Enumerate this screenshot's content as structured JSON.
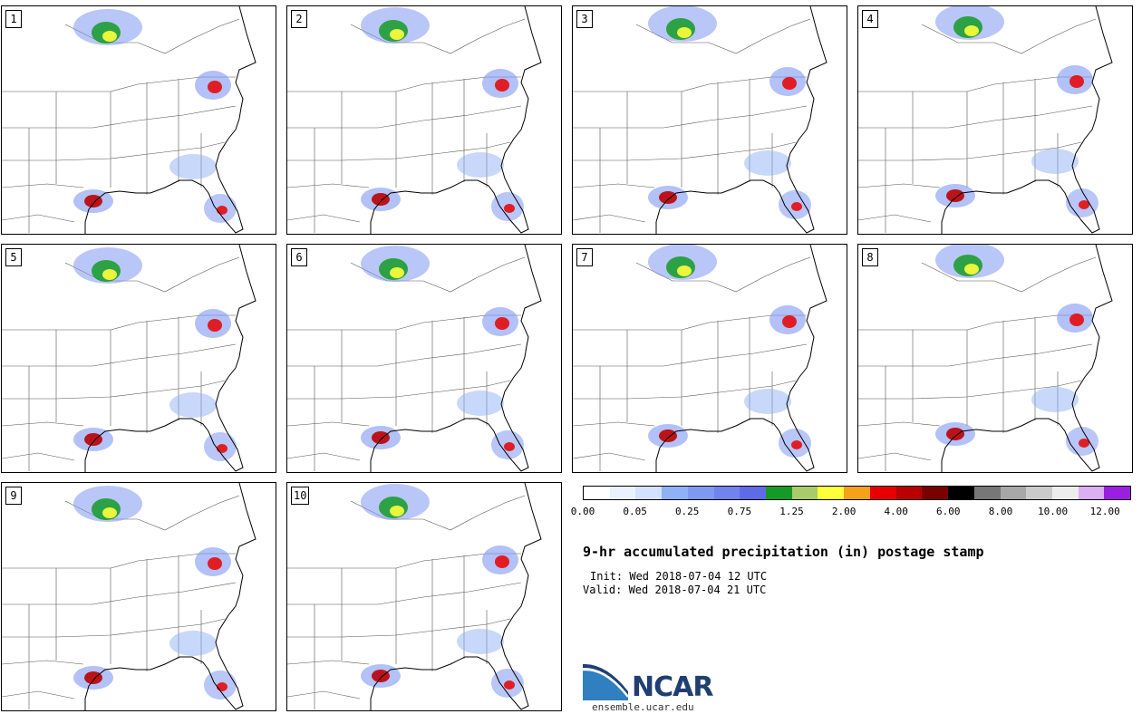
{
  "members": [
    "1",
    "2",
    "3",
    "4",
    "5",
    "6",
    "7",
    "8",
    "9",
    "10"
  ],
  "colorbar": {
    "colors": [
      "#ffffff",
      "#eaf2ff",
      "#d4e2ff",
      "#8fb1f5",
      "#7f98f2",
      "#7183ee",
      "#5f6be6",
      "#149a26",
      "#a8cc6a",
      "#ffff3a",
      "#f4a21a",
      "#e80000",
      "#bb0000",
      "#7a0000",
      "#000000",
      "#777777",
      "#a8a8a8",
      "#cbcbcb",
      "#ededed",
      "#dcaef2",
      "#9a1fe0"
    ],
    "tick_labels": [
      "0.00",
      "0.05",
      "0.25",
      "0.75",
      "1.25",
      "2.00",
      "4.00",
      "6.00",
      "8.00",
      "10.00",
      "12.00"
    ]
  },
  "title": "9-hr accumulated precipitation (in) postage stamp",
  "init": "Init: Wed 2018-07-04 12 UTC",
  "valid": "Valid: Wed 2018-07-04 21 UTC",
  "logo": {
    "wordmark": "NCAR",
    "site": "ensemble.ucar.edu",
    "color": "#1f3f73",
    "swoosh_color": "#2f7fc1"
  }
}
